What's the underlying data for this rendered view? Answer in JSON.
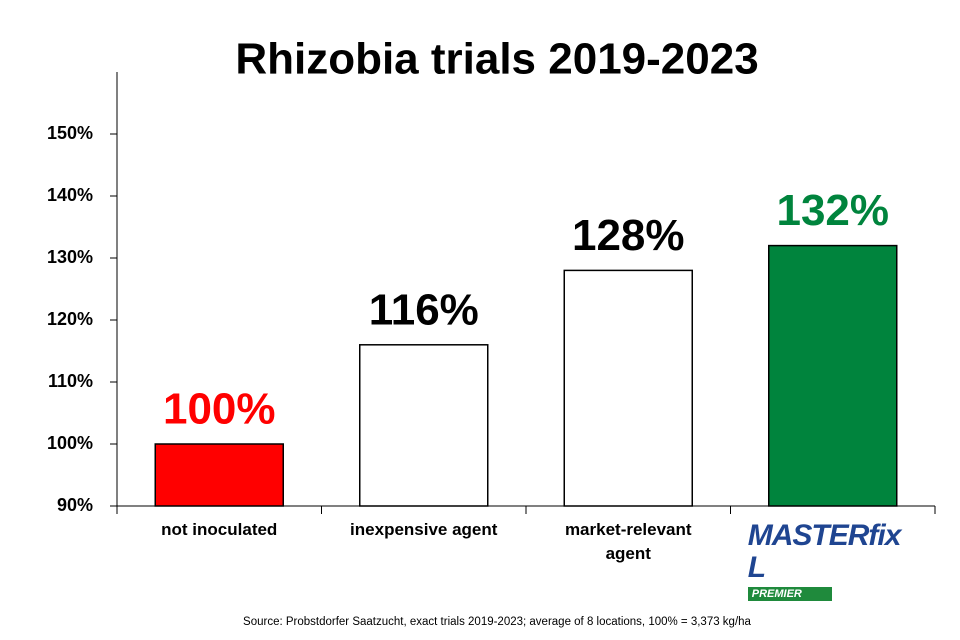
{
  "chart_data": {
    "type": "bar",
    "title": "Rhizobia trials 2019-2023",
    "categories": [
      "not inoculated",
      "inexpensive agent",
      "market-relevant agent",
      "MASTERfix L"
    ],
    "logo_badge": "PREMIER",
    "values": [
      100,
      116,
      128,
      132
    ],
    "value_labels": [
      "100%",
      "116%",
      "128%",
      "132%"
    ],
    "colors": [
      "#ff0000",
      "#ffffff",
      "#ffffff",
      "#00843d"
    ],
    "label_colors": [
      "#ff0000",
      "#000000",
      "#000000",
      "#00843d"
    ],
    "ylim": [
      90,
      160
    ],
    "yticks": [
      {
        "value": 90,
        "label": "90%"
      },
      {
        "value": 100,
        "label": "100%"
      },
      {
        "value": 110,
        "label": "110%"
      },
      {
        "value": 120,
        "label": "120%"
      },
      {
        "value": 130,
        "label": "130%"
      },
      {
        "value": 140,
        "label": "140%"
      },
      {
        "value": 150,
        "label": "150%"
      }
    ],
    "grid": false,
    "source": "Source: Probstdorfer Saatzucht, exact trials 2019-2023; average of 8 locations, 100% = 3,373 kg/ha"
  }
}
